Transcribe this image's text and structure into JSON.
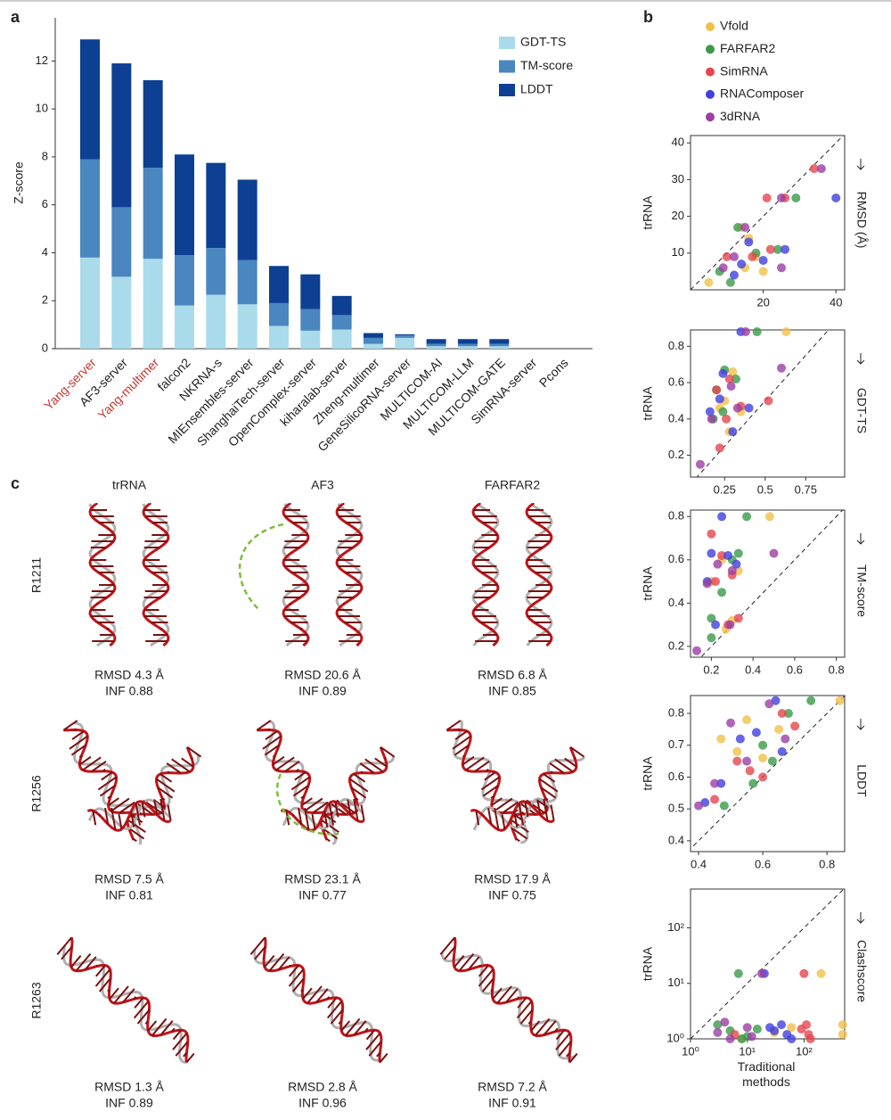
{
  "panel_labels": [
    "a",
    "b",
    "c"
  ],
  "chart_data": [
    {
      "type": "stacked-bar",
      "y_label": "Z-score",
      "categories": [
        "Yang-server",
        "AF3-server",
        "Yang-multimer",
        "falcon2",
        "NKRNA-s",
        "MIEnsembles-server",
        "ShanghaiTech-server",
        "OpenComplex-server",
        "kiharalab-server",
        "Zheng-multimer",
        "GeneSilicoRNA-server",
        "MULTICOM-AI",
        "MULTICOM-LLM",
        "MULTICOM-GATE",
        "SimRNA-server",
        "Pcons"
      ],
      "category_colors": [
        "#c8362e",
        "#222222",
        "#c8362e",
        "#222222",
        "#222222",
        "#222222",
        "#222222",
        "#222222",
        "#222222",
        "#222222",
        "#222222",
        "#222222",
        "#222222",
        "#222222",
        "#222222",
        "#222222"
      ],
      "series": [
        {
          "name": "GDT-TS",
          "color": "#a9dbea",
          "values": [
            3.8,
            3.0,
            3.75,
            1.8,
            2.25,
            1.85,
            0.95,
            0.75,
            0.8,
            0.2,
            0.45,
            0.1,
            0.1,
            0.1,
            0,
            0
          ]
        },
        {
          "name": "TM-score",
          "color": "#4a86bf",
          "values": [
            4.1,
            2.9,
            3.8,
            2.1,
            1.95,
            1.85,
            0.95,
            0.9,
            0.6,
            0.25,
            0.1,
            0.1,
            0.1,
            0.1,
            0,
            0
          ]
        },
        {
          "name": "LDDT",
          "color": "#0d3f92",
          "values": [
            5.0,
            6.0,
            3.65,
            4.2,
            3.55,
            3.35,
            1.55,
            1.45,
            0.8,
            0.2,
            0.05,
            0.2,
            0.2,
            0.2,
            0,
            0
          ]
        }
      ],
      "ylim": [
        0,
        13.8
      ],
      "yticks": [
        0,
        2,
        4,
        6,
        8,
        10,
        12
      ],
      "legend": "top-right"
    },
    {
      "type": "scatter-panels",
      "x_label": "Traditional methods",
      "series": [
        {
          "name": "Vfold",
          "color": "#f0c04a"
        },
        {
          "name": "FARFAR2",
          "color": "#3a9a4a"
        },
        {
          "name": "SimRNA",
          "color": "#e5464f"
        },
        {
          "name": "RNAComposer",
          "color": "#4040e0"
        },
        {
          "name": "3dRNA",
          "color": "#9b3fa5"
        }
      ],
      "panels": [
        {
          "y_label": "trRNA",
          "metric": "RMSD (Å)",
          "xlim": [
            0,
            42.4
          ],
          "ylim": [
            0,
            42
          ],
          "xticks": [
            20,
            40
          ],
          "yticks": [
            10,
            20,
            30,
            40
          ],
          "points": [
            {
              "x": [
                5,
                14,
                16,
                18,
                20,
                15
              ],
              "y": [
                2,
                17,
                14,
                9,
                5,
                6
              ]
            },
            {
              "x": [
                8,
                13,
                18,
                24,
                29,
                11
              ],
              "y": [
                5,
                17,
                10,
                11,
                25,
                2
              ]
            },
            {
              "x": [
                34,
                26,
                21,
                22,
                17,
                10
              ],
              "y": [
                33,
                25,
                25,
                11,
                9,
                9
              ]
            },
            {
              "x": [
                40,
                14,
                12,
                26,
                20,
                16
              ],
              "y": [
                25,
                7,
                4,
                11,
                8,
                13
              ]
            },
            {
              "x": [
                36,
                25,
                15,
                12,
                9,
                25
              ],
              "y": [
                33,
                25,
                17,
                9,
                6,
                6
              ]
            }
          ]
        },
        {
          "y_label": "trRNA",
          "metric": "GDT-TS",
          "xlim": [
            0.04,
            0.99
          ],
          "ylim": [
            0.08,
            0.89
          ],
          "xticks": [
            0.25,
            0.5,
            0.75
          ],
          "yticks": [
            0.2,
            0.4,
            0.6,
            0.8
          ],
          "points": [
            {
              "x": [
                0.63,
                0.3,
                0.25,
                0.22,
                0.28,
                0.35
              ],
              "y": [
                0.88,
                0.66,
                0.5,
                0.46,
                0.33,
                0.44
              ]
            },
            {
              "x": [
                0.45,
                0.25,
                0.2,
                0.18,
                0.24,
                0.32
              ],
              "y": [
                0.88,
                0.67,
                0.56,
                0.4,
                0.44,
                0.62
              ]
            },
            {
              "x": [
                0.52,
                0.22,
                0.2,
                0.28,
                0.26,
                0.35
              ],
              "y": [
                0.5,
                0.24,
                0.56,
                0.62,
                0.4,
                0.47
              ]
            },
            {
              "x": [
                0.35,
                0.22,
                0.16,
                0.3,
                0.24,
                0.4
              ],
              "y": [
                0.88,
                0.51,
                0.44,
                0.33,
                0.65,
                0.46
              ]
            },
            {
              "x": [
                0.1,
                0.38,
                0.6,
                0.17,
                0.29,
                0.33
              ],
              "y": [
                0.15,
                0.88,
                0.68,
                0.4,
                0.58,
                0.46
              ]
            }
          ]
        },
        {
          "y_label": "trRNA",
          "metric": "TM-score",
          "xlim": [
            0.1,
            0.84
          ],
          "ylim": [
            0.15,
            0.83
          ],
          "xticks": [
            0.2,
            0.4,
            0.6,
            0.8
          ],
          "yticks": [
            0.2,
            0.4,
            0.6,
            0.8
          ],
          "points": [
            {
              "x": [
                0.48,
                0.3,
                0.25,
                0.2,
                0.33,
                0.27
              ],
              "y": [
                0.8,
                0.32,
                0.6,
                0.5,
                0.55,
                0.28
              ]
            },
            {
              "x": [
                0.37,
                0.2,
                0.2,
                0.3,
                0.25,
                0.33
              ],
              "y": [
                0.8,
                0.33,
                0.24,
                0.6,
                0.45,
                0.63
              ]
            },
            {
              "x": [
                0.2,
                0.3,
                0.25,
                0.33,
                0.22,
                0.28
              ],
              "y": [
                0.72,
                0.53,
                0.62,
                0.33,
                0.5,
                0.3
              ]
            },
            {
              "x": [
                0.25,
                0.2,
                0.18,
                0.28,
                0.22,
                0.32
              ],
              "y": [
                0.8,
                0.63,
                0.5,
                0.62,
                0.3,
                0.58
              ]
            },
            {
              "x": [
                0.13,
                0.5,
                0.23,
                0.18,
                0.29,
                0.3
              ],
              "y": [
                0.18,
                0.63,
                0.58,
                0.49,
                0.3,
                0.55
              ]
            }
          ]
        },
        {
          "y_label": "trRNA",
          "metric": "LDDT",
          "xlim": [
            0.375,
            0.855
          ],
          "ylim": [
            0.366,
            0.856
          ],
          "xticks": [
            0.4,
            0.6,
            0.8
          ],
          "yticks": [
            0.4,
            0.5,
            0.6,
            0.7,
            0.8
          ],
          "points": [
            {
              "x": [
                0.84,
                0.47,
                0.55,
                0.52,
                0.6,
                0.65
              ],
              "y": [
                0.84,
                0.72,
                0.78,
                0.68,
                0.66,
                0.75
              ]
            },
            {
              "x": [
                0.75,
                0.48,
                0.57,
                0.6,
                0.68,
                0.63
              ],
              "y": [
                0.84,
                0.51,
                0.58,
                0.7,
                0.8,
                0.65
              ]
            },
            {
              "x": [
                0.66,
                0.56,
                0.52,
                0.7,
                0.45,
                0.6
              ],
              "y": [
                0.8,
                0.62,
                0.65,
                0.76,
                0.53,
                0.6
              ]
            },
            {
              "x": [
                0.64,
                0.47,
                0.53,
                0.58,
                0.66,
                0.42
              ],
              "y": [
                0.84,
                0.58,
                0.72,
                0.74,
                0.68,
                0.52
              ]
            },
            {
              "x": [
                0.4,
                0.5,
                0.62,
                0.55,
                0.45,
                0.67
              ],
              "y": [
                0.51,
                0.77,
                0.83,
                0.65,
                0.58,
                0.72
              ]
            }
          ]
        },
        {
          "y_label": "trRNA",
          "metric": "Clashscore",
          "log_scale": true,
          "xlim": [
            1,
            520
          ],
          "ylim": [
            1,
            500
          ],
          "xticks": [
            {
              "value": 1,
              "label": "10⁰"
            },
            {
              "value": 10,
              "label": "10¹"
            },
            {
              "value": 100,
              "label": "10²"
            }
          ],
          "yticks": [
            {
              "value": 1,
              "label": "10⁰"
            },
            {
              "value": 10,
              "label": "10¹"
            },
            {
              "value": 100,
              "label": "10²"
            }
          ],
          "points": [
            {
              "x": [
                200,
                480,
                480,
                30,
                8,
                60
              ],
              "y": [
                15,
                1.8,
                1.2,
                1.3,
                1,
                1.6
              ]
            },
            {
              "x": [
                7,
                8,
                5,
                3,
                15,
                10
              ],
              "y": [
                15,
                1,
                1.4,
                1.8,
                1.5,
                1.1
              ]
            },
            {
              "x": [
                100,
                110,
                120,
                90,
                6,
                130
              ],
              "y": [
                15,
                1.8,
                1.2,
                1.5,
                1.2,
                1
              ]
            },
            {
              "x": [
                20,
                40,
                30,
                50,
                25,
                60
              ],
              "y": [
                15,
                1.8,
                1.4,
                1.2,
                1.6,
                1
              ]
            },
            {
              "x": [
                18,
                4,
                5,
                10,
                3,
                12
              ],
              "y": [
                15,
                2,
                1,
                1.6,
                1.3,
                1.1
              ]
            }
          ]
        }
      ]
    }
  ],
  "structures": {
    "columns": [
      "trRNA",
      "AF3",
      "FARFAR2"
    ],
    "rows": [
      {
        "name": "R1211",
        "cells": [
          [
            "RMSD 4.3 Å",
            "INF 0.88"
          ],
          [
            "RMSD 20.6 Å",
            "INF 0.89"
          ],
          [
            "RMSD 6.8 Å",
            "INF 0.85"
          ]
        ]
      },
      {
        "name": "R1256",
        "cells": [
          [
            "RMSD 7.5 Å",
            "INF 0.81"
          ],
          [
            "RMSD 23.1 Å",
            "INF 0.77"
          ],
          [
            "RMSD 17.9 Å",
            "INF 0.75"
          ]
        ]
      },
      {
        "name": "R1263",
        "cells": [
          [
            "RMSD 1.3 Å",
            "INF 0.89"
          ],
          [
            "RMSD 2.8 Å",
            "INF 0.96"
          ],
          [
            "RMSD 7.2 Å",
            "INF 0.91"
          ]
        ]
      }
    ]
  }
}
